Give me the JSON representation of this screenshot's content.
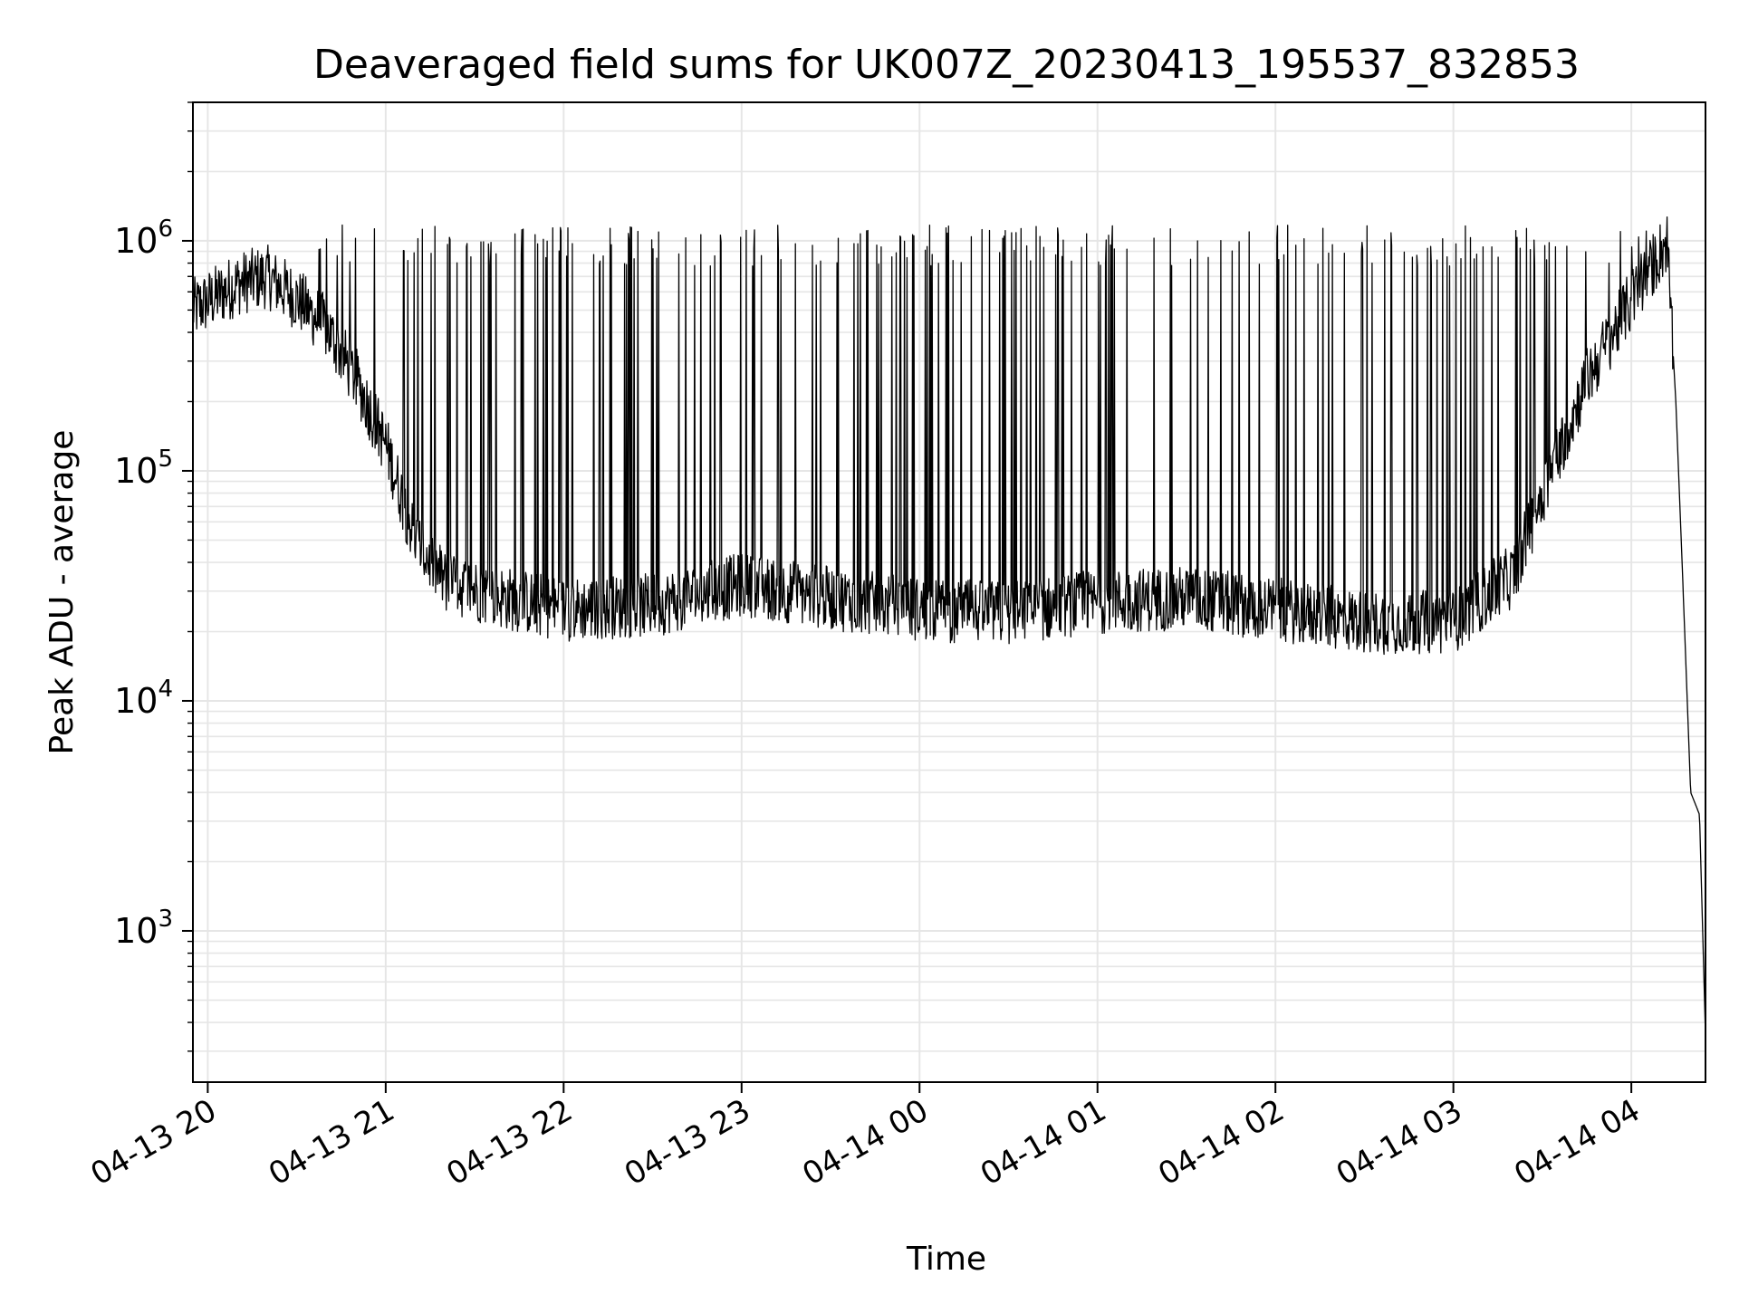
{
  "chart_data": {
    "type": "line",
    "title": "Deaveraged field sums for UK007Z_20230413_195537_832853",
    "xlabel": "Time",
    "ylabel": "Peak ADU - average",
    "yscale": "log",
    "ylim": [
      220,
      4000000
    ],
    "xlim": [
      "2023-04-13 19:55",
      "2023-04-14 04:25"
    ],
    "grid": true,
    "line_color": "#000000",
    "grid_color": "#e6e6e6",
    "x_ticks": [
      {
        "t": "2023-04-13 20:00",
        "label": "04-13 20"
      },
      {
        "t": "2023-04-13 21:00",
        "label": "04-13 21"
      },
      {
        "t": "2023-04-13 22:00",
        "label": "04-13 22"
      },
      {
        "t": "2023-04-13 23:00",
        "label": "04-13 23"
      },
      {
        "t": "2023-04-14 00:00",
        "label": "04-14 00"
      },
      {
        "t": "2023-04-14 01:00",
        "label": "04-14 01"
      },
      {
        "t": "2023-04-14 02:00",
        "label": "04-14 02"
      },
      {
        "t": "2023-04-14 03:00",
        "label": "04-14 03"
      },
      {
        "t": "2023-04-14 04:00",
        "label": "04-14 04"
      }
    ],
    "y_ticks": [
      {
        "value": 1000,
        "base": "10",
        "exp": "3"
      },
      {
        "value": 10000,
        "base": "10",
        "exp": "4"
      },
      {
        "value": 100000,
        "base": "10",
        "exp": "5"
      },
      {
        "value": 1000000,
        "base": "10",
        "exp": "6"
      }
    ],
    "baseline": [
      {
        "t": "2023-04-13 19:55",
        "y": 500000
      },
      {
        "t": "2023-04-13 20:10",
        "y": 650000
      },
      {
        "t": "2023-04-13 20:20",
        "y": 700000
      },
      {
        "t": "2023-04-13 20:30",
        "y": 560000
      },
      {
        "t": "2023-04-13 20:40",
        "y": 420000
      },
      {
        "t": "2023-04-13 20:50",
        "y": 250000
      },
      {
        "t": "2023-04-13 21:00",
        "y": 130000
      },
      {
        "t": "2023-04-13 21:10",
        "y": 50000
      },
      {
        "t": "2023-04-13 21:20",
        "y": 33000
      },
      {
        "t": "2023-04-13 21:40",
        "y": 28000
      },
      {
        "t": "2023-04-13 22:00",
        "y": 25000
      },
      {
        "t": "2023-04-13 22:30",
        "y": 26000
      },
      {
        "t": "2023-04-13 23:00",
        "y": 32000
      },
      {
        "t": "2023-04-13 23:30",
        "y": 28000
      },
      {
        "t": "2023-04-14 00:00",
        "y": 25000
      },
      {
        "t": "2023-04-14 00:30",
        "y": 24000
      },
      {
        "t": "2023-04-14 01:00",
        "y": 27000
      },
      {
        "t": "2023-04-14 01:30",
        "y": 28000
      },
      {
        "t": "2023-04-14 02:00",
        "y": 25000
      },
      {
        "t": "2023-04-14 02:30",
        "y": 22000
      },
      {
        "t": "2023-04-14 03:00",
        "y": 22000
      },
      {
        "t": "2023-04-14 03:20",
        "y": 35000
      },
      {
        "t": "2023-04-14 03:30",
        "y": 80000
      },
      {
        "t": "2023-04-14 03:45",
        "y": 250000
      },
      {
        "t": "2023-04-14 04:00",
        "y": 550000
      },
      {
        "t": "2023-04-14 04:10",
        "y": 900000
      },
      {
        "t": "2023-04-14 04:12",
        "y": 1000000
      },
      {
        "t": "2023-04-14 04:15",
        "y": 200000
      },
      {
        "t": "2023-04-14 04:18",
        "y": 20000
      },
      {
        "t": "2023-04-14 04:20",
        "y": 4000
      },
      {
        "t": "2023-04-14 04:23",
        "y": 3200
      },
      {
        "t": "2023-04-14 04:25",
        "y": 350
      }
    ],
    "spike_peak": 1000000
  }
}
